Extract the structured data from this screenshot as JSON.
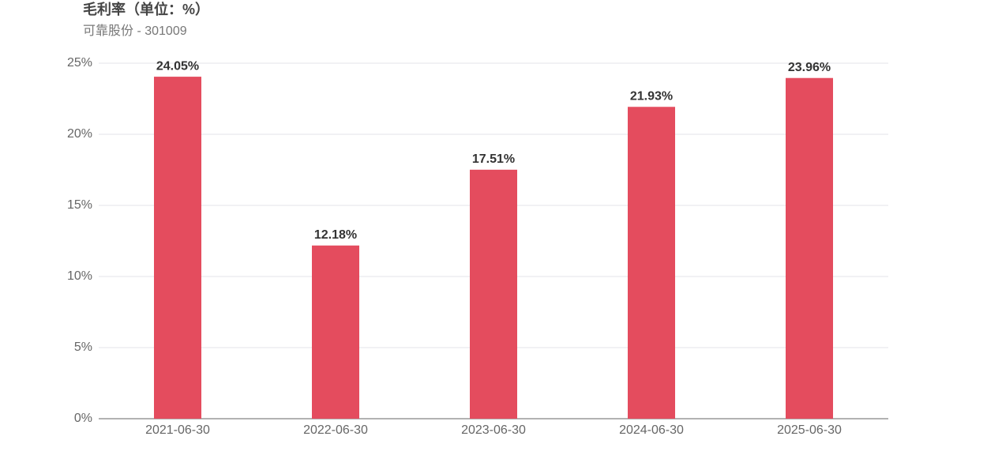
{
  "chart_data": {
    "type": "bar",
    "title": "毛利率（单位：%）",
    "subtitle": "可靠股份 - 301009",
    "categories": [
      "2021-06-30",
      "2022-06-30",
      "2023-06-30",
      "2024-06-30",
      "2025-06-30"
    ],
    "values": [
      24.05,
      12.18,
      17.51,
      21.93,
      23.96
    ],
    "value_labels": [
      "24.05%",
      "12.18%",
      "17.51%",
      "21.93%",
      "23.96%"
    ],
    "color": "#e44c5e",
    "ylim": [
      0,
      25
    ],
    "yticks": [
      {
        "value": 0,
        "label": "0%"
      },
      {
        "value": 5,
        "label": "5%"
      },
      {
        "value": 10,
        "label": "10%"
      },
      {
        "value": 15,
        "label": "15%"
      },
      {
        "value": 20,
        "label": "20%"
      },
      {
        "value": 25,
        "label": "25%"
      }
    ],
    "grid": true
  }
}
